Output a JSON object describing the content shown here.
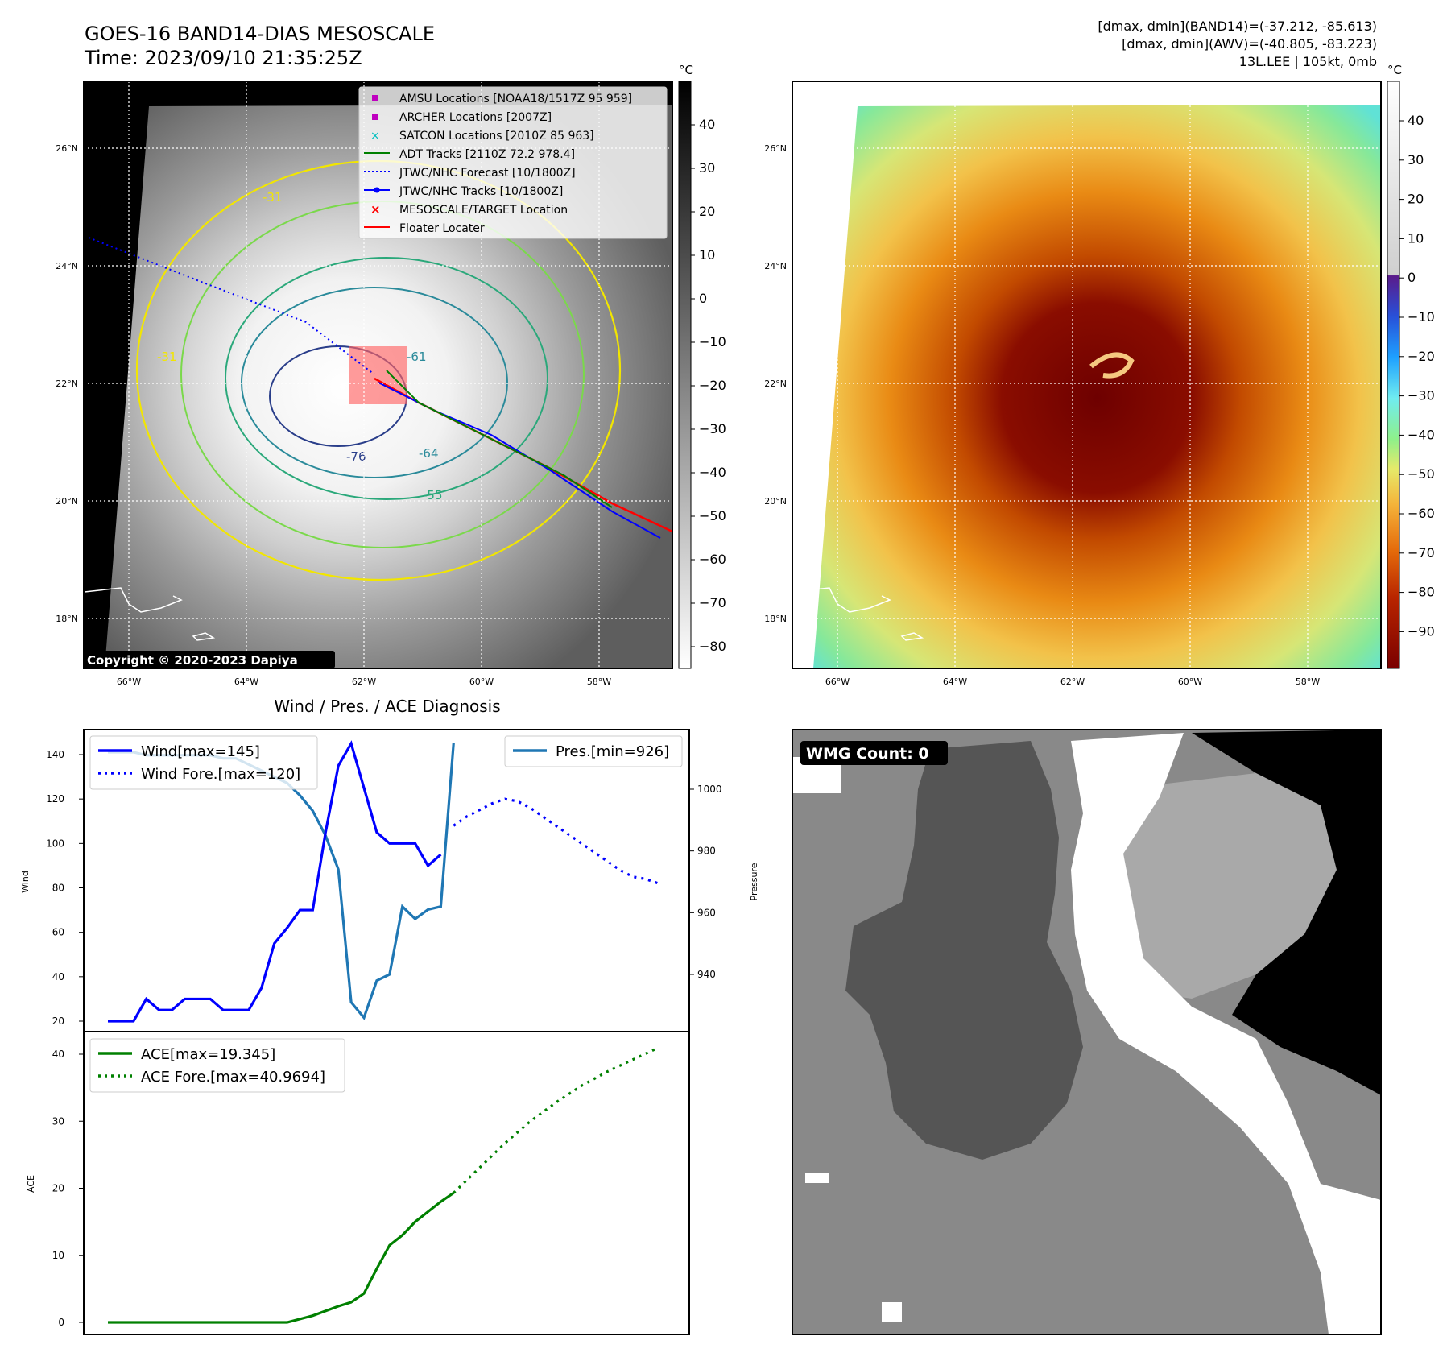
{
  "header": {
    "title": "GOES-16 BAND14-DIAS MESOSCALE",
    "time": "Time: 2023/09/10 21:35:25Z",
    "stat_band14": "[dmax, dmin](BAND14)=(-37.212, -85.613)",
    "stat_awv": "[dmax, dmin](AWV)=(-40.805, -83.223)",
    "storm": "13L.LEE | 105kt, 0mb"
  },
  "map": {
    "lat_labels": [
      "26°N",
      "24°N",
      "22°N",
      "20°N",
      "18°N"
    ],
    "lon_labels": [
      "66°W",
      "64°W",
      "62°W",
      "60°W",
      "58°W"
    ],
    "copyright": "Copyright © 2020-2023 Dapiya",
    "legend": [
      {
        "label": "AMSU Locations [NOAA18/1517Z 95 959]",
        "color": "#bf00bf",
        "symbol": "square"
      },
      {
        "label": "ARCHER Locations [2007Z]",
        "color": "#bf00bf",
        "symbol": "square"
      },
      {
        "label": "SATCON Locations [2010Z 85 963]",
        "color": "#00bfbf",
        "symbol": "x"
      },
      {
        "label": "ADT Tracks [2110Z 72.2 978.4]",
        "color": "#008000",
        "symbol": "line"
      },
      {
        "label": "JTWC/NHC Forecast [10/1800Z]",
        "color": "#0000ff",
        "symbol": "dotted"
      },
      {
        "label": "JTWC/NHC Tracks [10/1800Z]",
        "color": "#0000ff",
        "symbol": "line-dot"
      },
      {
        "label": "MESOSCALE/TARGET Location",
        "color": "#ff0000",
        "symbol": "x"
      },
      {
        "label": "Floater Locater",
        "color": "#ff0000",
        "symbol": "line"
      }
    ],
    "contour_labels": [
      "-31",
      "-31",
      "-61",
      "-76",
      "-64",
      "-55"
    ],
    "gray_cbar": {
      "unit": "°C",
      "ticks": [
        "40",
        "30",
        "20",
        "10",
        "0",
        "−10",
        "−20",
        "−30",
        "−40",
        "−50",
        "−60",
        "−70",
        "−80"
      ]
    },
    "color_cbar": {
      "unit": "°C",
      "ticks": [
        "40",
        "30",
        "20",
        "10",
        "0",
        "−10",
        "−20",
        "−30",
        "−40",
        "−50",
        "−60",
        "−70",
        "−80",
        "−90"
      ]
    }
  },
  "wmg": {
    "label": "WMG Count: 0"
  },
  "chart_data": [
    {
      "type": "line",
      "title": "Wind / Pres. / ACE Diagnosis",
      "ylabel": "Wind",
      "ylabel_right": "Pressure",
      "ylim": [
        15,
        150
      ],
      "y_ticks": [
        20,
        40,
        60,
        80,
        100,
        120,
        140
      ],
      "ylim_right": [
        921,
        1020
      ],
      "y_ticks_right": [
        940,
        960,
        980,
        1000
      ],
      "grid": false,
      "legend": [
        "top-left",
        "top-right"
      ],
      "series": [
        {
          "name": "Wind[max=145]",
          "color": "#0000ff",
          "style": "solid",
          "x": [
            0,
            1,
            2,
            3,
            4,
            5,
            6,
            7,
            8,
            9,
            10,
            11,
            12,
            13,
            14,
            15,
            16,
            17,
            18,
            19,
            20,
            21,
            22,
            23,
            24,
            25,
            26
          ],
          "values": [
            20,
            20,
            20,
            30,
            25,
            25,
            30,
            30,
            30,
            25,
            25,
            25,
            35,
            55,
            62,
            70,
            70,
            105,
            135,
            145,
            125,
            105,
            100,
            100,
            100,
            90,
            95
          ]
        },
        {
          "name": "Wind Fore.[max=120]",
          "color": "#0000ff",
          "style": "dotted",
          "x": [
            27,
            28,
            29,
            30,
            31,
            32,
            33,
            34,
            35,
            36,
            37,
            38,
            39,
            40,
            41,
            42,
            43
          ],
          "values": [
            108,
            112,
            115,
            118,
            120,
            119,
            116,
            112,
            108,
            104,
            100,
            96,
            92,
            88,
            85,
            84,
            82
          ]
        },
        {
          "name": "Pres.[min=926]",
          "color": "#1f77b4",
          "style": "solid",
          "axis": "right",
          "x": [
            0,
            1,
            2,
            3,
            4,
            5,
            6,
            7,
            8,
            9,
            10,
            11,
            12,
            13,
            14,
            15,
            16,
            17,
            18,
            19,
            20,
            21,
            22,
            23,
            24,
            25,
            26,
            27
          ],
          "values": [
            1012,
            1012,
            1012,
            1011,
            1011,
            1011,
            1011,
            1011,
            1011,
            1010,
            1010,
            1008,
            1006,
            1004,
            1002,
            998,
            993,
            985,
            974,
            931,
            926,
            938,
            940,
            962,
            958,
            961,
            962,
            1015
          ]
        }
      ]
    },
    {
      "type": "line",
      "ylabel": "ACE",
      "ylim": [
        -2,
        42
      ],
      "y_ticks": [
        0,
        10,
        20,
        30,
        40
      ],
      "grid": false,
      "legend": "top-left",
      "series": [
        {
          "name": "ACE[max=19.345]",
          "color": "#008000",
          "style": "solid",
          "x": [
            0,
            2,
            4,
            6,
            8,
            10,
            12,
            14,
            16,
            18,
            19,
            20,
            21,
            22,
            23,
            24,
            25,
            26,
            27
          ],
          "values": [
            0,
            0,
            0,
            0,
            0,
            0,
            0,
            0,
            1,
            2.4,
            3,
            4.3,
            8,
            11.5,
            13,
            15,
            16.5,
            18,
            19.3
          ]
        },
        {
          "name": "ACE Fore.[max=40.9694]",
          "color": "#008000",
          "style": "dotted",
          "x": [
            27,
            29,
            31,
            33,
            35,
            37,
            39,
            41,
            43
          ],
          "values": [
            19.3,
            23,
            26.7,
            30,
            32.8,
            35.3,
            37.4,
            39.2,
            40.97
          ]
        }
      ]
    }
  ]
}
